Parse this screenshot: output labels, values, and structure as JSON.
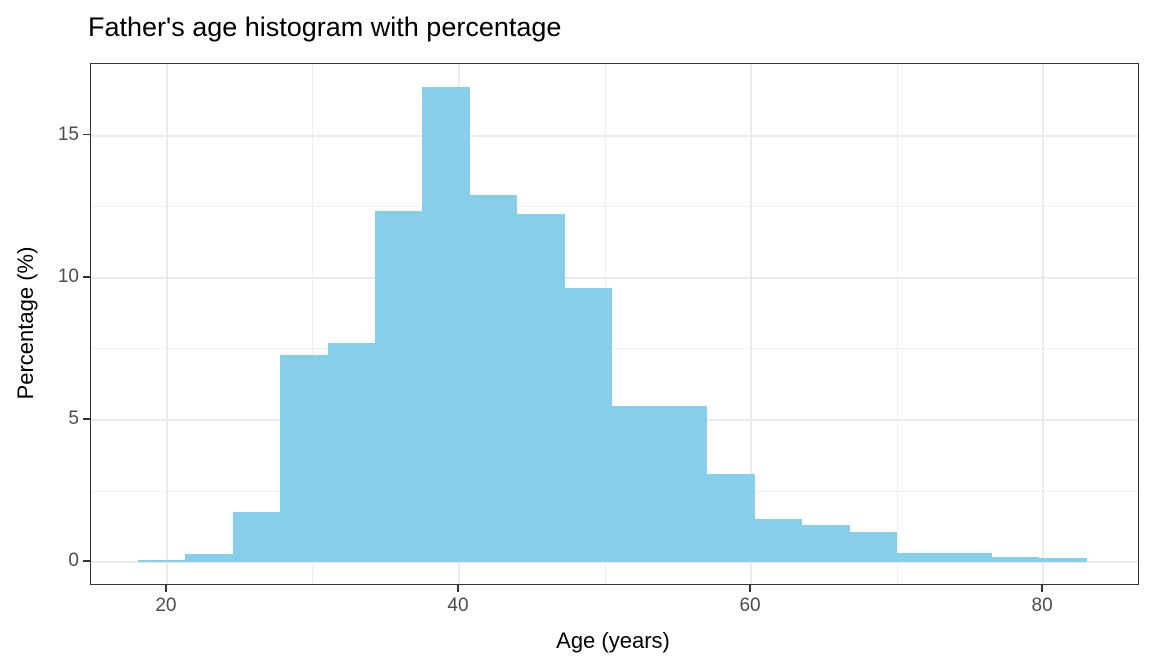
{
  "chart_data": {
    "type": "bar",
    "subtype": "histogram",
    "title": "Father's age histogram with percentage",
    "xlabel": "Age (years)",
    "ylabel": "Percentage (%)",
    "bin_edges": [
      18,
      21.25,
      24.5,
      27.75,
      31,
      34.25,
      37.5,
      40.75,
      44,
      47.25,
      50.5,
      53.75,
      57,
      60.25,
      63.5,
      66.75,
      70,
      73.25,
      76.5,
      79.75,
      83
    ],
    "values_pct": [
      0.07,
      0.27,
      1.75,
      7.3,
      7.7,
      12.35,
      16.7,
      12.9,
      12.25,
      9.65,
      5.5,
      5.5,
      3.1,
      1.5,
      1.3,
      1.05,
      0.33,
      0.33,
      0.18,
      0.15
    ],
    "x_major_ticks": [
      20,
      40,
      60,
      80
    ],
    "x_tick_labels": [
      "20",
      "40",
      "60",
      "80"
    ],
    "x_minor_ticks": [
      30,
      50,
      70
    ],
    "y_major_ticks": [
      0,
      5,
      10,
      15
    ],
    "y_tick_labels": [
      "0",
      "5",
      "10",
      "15"
    ],
    "y_minor_ticks": [
      2.5,
      7.5,
      12.5
    ],
    "xlim": [
      14.8,
      86.5
    ],
    "ylim": [
      -0.77,
      17.52
    ],
    "legend": "none",
    "grid": "on",
    "colors": {
      "bar_fill": "#87CEEB",
      "grid_major": "#EBEBEB",
      "grid_minor": "#EFEFEF",
      "panel_border": "#333333",
      "tick_mark": "#333333",
      "tick_label": "#4D4D4D",
      "text": "#000000",
      "background": "#FFFFFF"
    }
  }
}
